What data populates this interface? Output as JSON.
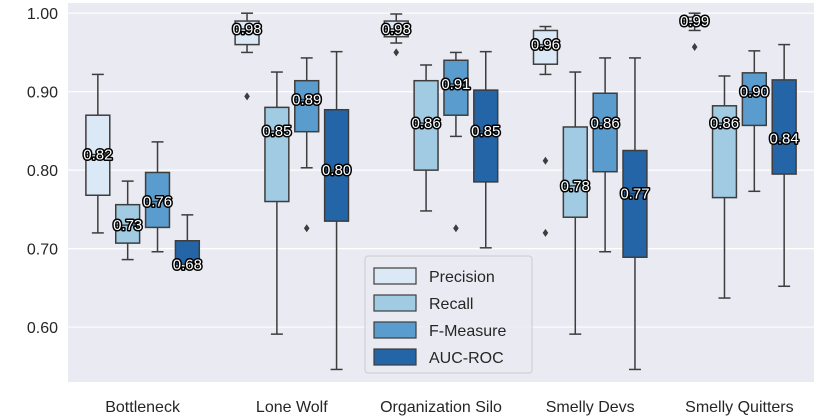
{
  "chart_data": {
    "type": "box",
    "categories": [
      "Bottleneck",
      "Lone Wolf",
      "Organization Silo",
      "Smelly Devs",
      "Smelly Quitters"
    ],
    "ylim": [
      0.53,
      1.013
    ],
    "yticks": [
      0.6,
      0.7,
      0.8,
      0.9,
      1.0
    ],
    "ytick_labels": [
      "0.60",
      "0.70",
      "0.80",
      "0.90",
      "1.00"
    ],
    "grid": true,
    "legend_position": "lower-center",
    "series": [
      {
        "name": "Precision",
        "color": "#dbe9f6",
        "boxes": [
          {
            "whislo": 0.72,
            "q1": 0.768,
            "med": 0.82,
            "q3": 0.87,
            "whishi": 0.922,
            "fliers": [],
            "label": "0.82"
          },
          {
            "whislo": 0.95,
            "q1": 0.96,
            "med": 0.98,
            "q3": 0.99,
            "whishi": 1.0,
            "fliers": [
              0.894
            ],
            "label": "0.98"
          },
          {
            "whislo": 0.962,
            "q1": 0.97,
            "med": 0.98,
            "q3": 0.99,
            "whishi": 0.999,
            "fliers": [
              0.95
            ],
            "label": "0.98"
          },
          {
            "whislo": 0.922,
            "q1": 0.935,
            "med": 0.96,
            "q3": 0.978,
            "whishi": 0.983,
            "fliers": [
              0.812,
              0.72
            ],
            "label": "0.96"
          },
          {
            "whislo": 0.978,
            "q1": 0.985,
            "med": 0.99,
            "q3": 0.995,
            "whishi": 1.0,
            "fliers": [
              0.957
            ],
            "label": "0.99"
          }
        ]
      },
      {
        "name": "Recall",
        "color": "#a0cbe2",
        "boxes": [
          {
            "whislo": 0.686,
            "q1": 0.707,
            "med": 0.73,
            "q3": 0.756,
            "whishi": 0.786,
            "fliers": [],
            "label": "0.73"
          },
          {
            "whislo": 0.591,
            "q1": 0.76,
            "med": 0.85,
            "q3": 0.88,
            "whishi": 0.925,
            "fliers": [],
            "label": "0.85"
          },
          {
            "whislo": 0.748,
            "q1": 0.8,
            "med": 0.86,
            "q3": 0.914,
            "whishi": 0.934,
            "fliers": [],
            "label": "0.86"
          },
          {
            "whislo": 0.591,
            "q1": 0.74,
            "med": 0.78,
            "q3": 0.855,
            "whishi": 0.925,
            "fliers": [],
            "label": "0.78"
          },
          {
            "whislo": 0.637,
            "q1": 0.765,
            "med": 0.86,
            "q3": 0.882,
            "whishi": 0.92,
            "fliers": [],
            "label": "0.86"
          }
        ]
      },
      {
        "name": "F-Measure",
        "color": "#5b9cce",
        "boxes": [
          {
            "whislo": 0.696,
            "q1": 0.727,
            "med": 0.76,
            "q3": 0.797,
            "whishi": 0.836,
            "fliers": [],
            "label": "0.76"
          },
          {
            "whislo": 0.803,
            "q1": 0.849,
            "med": 0.89,
            "q3": 0.914,
            "whishi": 0.943,
            "fliers": [
              0.726
            ],
            "label": "0.89"
          },
          {
            "whislo": 0.843,
            "q1": 0.87,
            "med": 0.91,
            "q3": 0.94,
            "whishi": 0.95,
            "fliers": [
              0.726
            ],
            "label": "0.91"
          },
          {
            "whislo": 0.696,
            "q1": 0.798,
            "med": 0.86,
            "q3": 0.898,
            "whishi": 0.943,
            "fliers": [],
            "label": "0.86"
          },
          {
            "whislo": 0.773,
            "q1": 0.857,
            "med": 0.9,
            "q3": 0.924,
            "whishi": 0.952,
            "fliers": [],
            "label": "0.90"
          }
        ]
      },
      {
        "name": "AUC-ROC",
        "color": "#2465a8",
        "boxes": [
          {
            "whislo": 0.68,
            "q1": 0.68,
            "med": 0.68,
            "q3": 0.71,
            "whishi": 0.743,
            "fliers": [],
            "label": "0.68"
          },
          {
            "whislo": 0.546,
            "q1": 0.735,
            "med": 0.8,
            "q3": 0.877,
            "whishi": 0.951,
            "fliers": [],
            "label": "0.80"
          },
          {
            "whislo": 0.701,
            "q1": 0.785,
            "med": 0.85,
            "q3": 0.902,
            "whishi": 0.951,
            "fliers": [],
            "label": "0.85"
          },
          {
            "whislo": 0.546,
            "q1": 0.689,
            "med": 0.77,
            "q3": 0.825,
            "whishi": 0.943,
            "fliers": [],
            "label": "0.77"
          },
          {
            "whislo": 0.652,
            "q1": 0.795,
            "med": 0.84,
            "q3": 0.915,
            "whishi": 0.96,
            "fliers": [],
            "label": "0.84"
          }
        ]
      }
    ]
  }
}
